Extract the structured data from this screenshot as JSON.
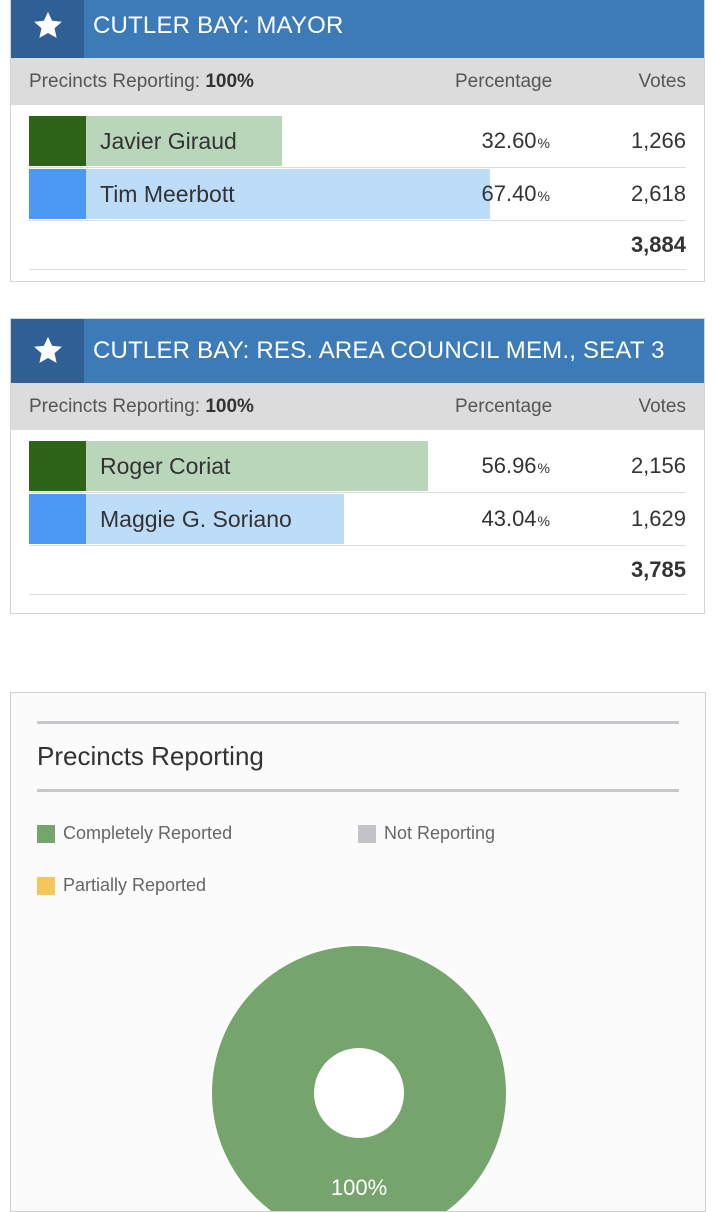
{
  "races": [
    {
      "title": "CUTLER BAY: MAYOR",
      "reporting_label": "Precincts Reporting:",
      "reporting_value": "100%",
      "pct_header": "Percentage",
      "votes_header": "Votes",
      "candidates": [
        {
          "name": "Javier Giraud",
          "pct": "32.60",
          "pct_unit": "%",
          "votes": "1,266",
          "share": 32.6,
          "color": "#2e6418",
          "bar_color": "#b9d6bb"
        },
        {
          "name": "Tim Meerbott",
          "pct": "67.40",
          "pct_unit": "%",
          "votes": "2,618",
          "share": 67.4,
          "color": "#4a9af5",
          "bar_color": "#bcdcf8"
        }
      ],
      "total": "3,884"
    },
    {
      "title": "CUTLER BAY: RES. AREA COUNCIL MEM., SEAT 3",
      "reporting_label": "Precincts Reporting:",
      "reporting_value": "100%",
      "pct_header": "Percentage",
      "votes_header": "Votes",
      "candidates": [
        {
          "name": "Roger Coriat",
          "pct": "56.96",
          "pct_unit": "%",
          "votes": "2,156",
          "share": 56.96,
          "color": "#2e6418",
          "bar_color": "#b9d6bb"
        },
        {
          "name": "Maggie G. Soriano",
          "pct": "43.04",
          "pct_unit": "%",
          "votes": "1,629",
          "share": 43.04,
          "color": "#4a9af5",
          "bar_color": "#bcdcf8"
        }
      ],
      "total": "3,785"
    }
  ],
  "precincts": {
    "title": "Precincts Reporting",
    "legend": [
      {
        "label": "Completely Reported",
        "color": "#75a46d"
      },
      {
        "label": "Not Reporting",
        "color": "#c4c3c8"
      },
      {
        "label": "Partially Reported",
        "color": "#f5c659"
      }
    ],
    "donut_label": "100%",
    "completely_share": 100
  },
  "chart_data": {
    "type": "pie",
    "title": "Precincts Reporting",
    "categories": [
      "Completely Reported",
      "Not Reporting",
      "Partially Reported"
    ],
    "values": [
      100,
      0,
      0
    ],
    "colors": [
      "#75a46d",
      "#c4c3c8",
      "#f5c659"
    ],
    "legend_position": "top",
    "donut": true
  },
  "icons": {
    "race_header": "star-icon"
  }
}
